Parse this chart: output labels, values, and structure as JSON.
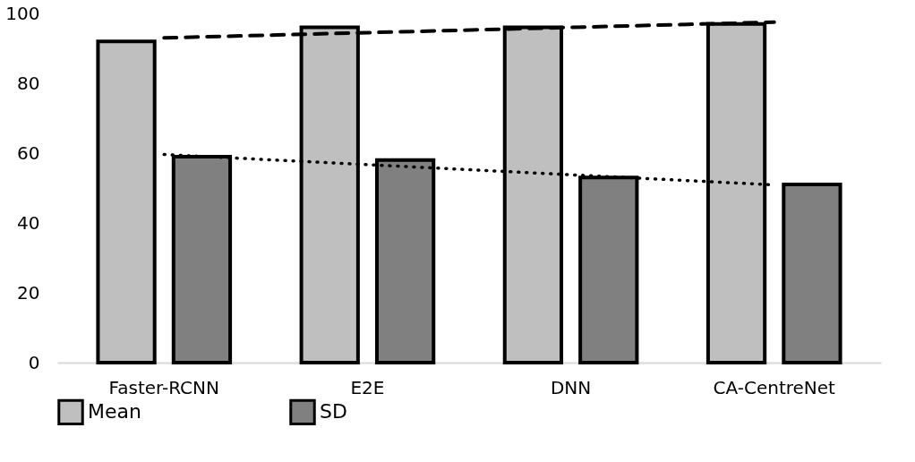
{
  "chart_data": {
    "type": "bar",
    "categories": [
      "Faster-RCNN",
      "E2E",
      "DNN",
      "CA-CentreNet"
    ],
    "series": [
      {
        "name": "Mean",
        "color": "#bfbfbf",
        "values": [
          92,
          96,
          96,
          97
        ]
      },
      {
        "name": "SD",
        "color": "#808080",
        "values": [
          59,
          58,
          53,
          51
        ]
      },
      {
        "type": "line",
        "line_style": "dashed",
        "color": "#000000",
        "values": [
          93.0,
          94.5,
          96.0,
          97.5
        ]
      },
      {
        "type": "line",
        "line_style": "dotted",
        "color": "#000000",
        "values": [
          59.6,
          56.7,
          53.8,
          50.9
        ]
      }
    ],
    "ylim": [
      0,
      100
    ],
    "yticks": [
      0,
      20,
      40,
      60,
      80,
      100
    ],
    "grid": false,
    "legend": "bottom"
  }
}
